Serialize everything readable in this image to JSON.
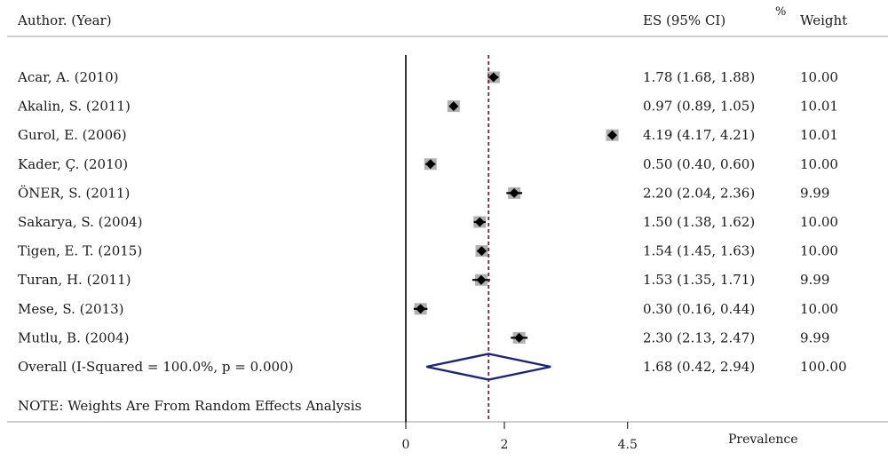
{
  "chart_data": {
    "type": "forest",
    "headers": {
      "study": "Author. (Year)",
      "es": "ES (95% CI)",
      "weight_pct": "%",
      "weight": "Weight"
    },
    "studies": [
      {
        "label": "Acar, A. (2010)",
        "es": 1.78,
        "lo": 1.68,
        "hi": 1.88,
        "ci_text": "1.78 (1.68, 1.88)",
        "weight": "10.00"
      },
      {
        "label": "Akalin, S. (2011)",
        "es": 0.97,
        "lo": 0.89,
        "hi": 1.05,
        "ci_text": "0.97 (0.89, 1.05)",
        "weight": "10.01"
      },
      {
        "label": "Gurol, E. (2006)",
        "es": 4.19,
        "lo": 4.17,
        "hi": 4.21,
        "ci_text": "4.19 (4.17, 4.21)",
        "weight": "10.01"
      },
      {
        "label": "Kader, Ç. (2010)",
        "es": 0.5,
        "lo": 0.4,
        "hi": 0.6,
        "ci_text": "0.50 (0.40, 0.60)",
        "weight": "10.00"
      },
      {
        "label": "ÖNER, S. (2011)",
        "es": 2.2,
        "lo": 2.04,
        "hi": 2.36,
        "ci_text": "2.20 (2.04, 2.36)",
        "weight": "9.99"
      },
      {
        "label": "Sakarya, S. (2004)",
        "es": 1.5,
        "lo": 1.38,
        "hi": 1.62,
        "ci_text": "1.50 (1.38, 1.62)",
        "weight": "10.00"
      },
      {
        "label": "Tigen, E. T. (2015)",
        "es": 1.54,
        "lo": 1.45,
        "hi": 1.63,
        "ci_text": "1.54 (1.45, 1.63)",
        "weight": "10.00"
      },
      {
        "label": "Turan, H. (2011)",
        "es": 1.53,
        "lo": 1.35,
        "hi": 1.71,
        "ci_text": "1.53 (1.35, 1.71)",
        "weight": "9.99"
      },
      {
        "label": "Mese, S. (2013)",
        "es": 0.3,
        "lo": 0.16,
        "hi": 0.44,
        "ci_text": "0.30 (0.16, 0.44)",
        "weight": "10.00"
      },
      {
        "label": "Mutlu, B. (2004)",
        "es": 2.3,
        "lo": 2.13,
        "hi": 2.47,
        "ci_text": "2.30 (2.13, 2.47)",
        "weight": "9.99"
      }
    ],
    "overall": {
      "label": "Overall  (I-Squared = 100.0%, p = 0.000)",
      "es": 1.68,
      "lo": 0.42,
      "hi": 2.94,
      "ci_text": "1.68 (0.42, 2.94)",
      "weight": "100.00"
    },
    "note": "NOTE: Weights Are From Random Effects Analysis",
    "x_ticks": [
      {
        "value": 0,
        "label": "0"
      },
      {
        "value": 2,
        "label": "2"
      },
      {
        "value": 4.5,
        "label": "4.5"
      }
    ],
    "xlabel": "Prevalence",
    "xlim": [
      0,
      4.5
    ],
    "colors": {
      "text": "#1a1a1a",
      "axis": "#000000",
      "overall_line": "#7a1f2e",
      "diamond": "#1a237e",
      "box": "#b0b0b0",
      "point": "#000000"
    }
  }
}
